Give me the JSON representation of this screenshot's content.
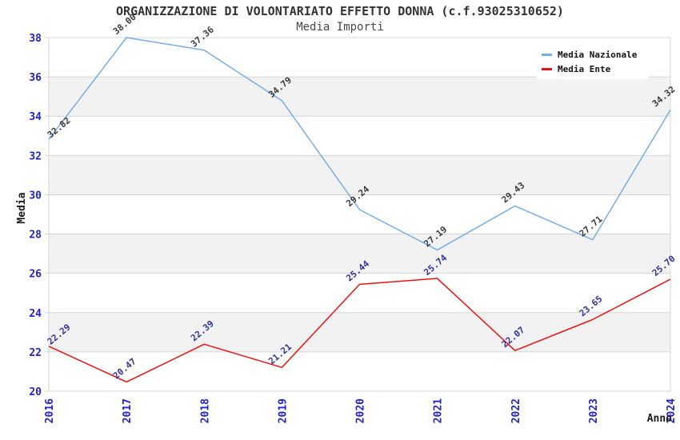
{
  "header": {
    "title": "ORGANIZZAZIONE DI VOLONTARIATO EFFETTO DONNA (c.f.93025310652)",
    "subtitle": "Media Importi"
  },
  "axes": {
    "y_label": "Media",
    "x_label": "Anno",
    "y_ticks": [
      "38",
      "36",
      "34",
      "32",
      "30",
      "28",
      "26",
      "24",
      "22",
      "20"
    ],
    "x_ticks": [
      "2016",
      "2017",
      "2018",
      "2019",
      "2020",
      "2021",
      "2022",
      "2023",
      "2024"
    ]
  },
  "legend": {
    "items": [
      {
        "label": "Media Nazionale",
        "color": "#74AEE6"
      },
      {
        "label": "Media Ente",
        "color": "#EE1111"
      }
    ]
  },
  "chart_data": {
    "type": "line",
    "title": "ORGANIZZAZIONE DI VOLONTARIATO EFFETTO DONNA (c.f.93025310652)",
    "subtitle": "Media Importi",
    "xlabel": "Anno",
    "ylabel": "Media",
    "x": [
      2016,
      2017,
      2018,
      2019,
      2020,
      2021,
      2022,
      2023,
      2024
    ],
    "series": [
      {
        "name": "Media Nazionale",
        "color": "#74AEE6",
        "label_color": "#3C3C3C",
        "values": [
          32.82,
          38.0,
          37.36,
          34.79,
          29.24,
          27.19,
          29.43,
          27.71,
          34.32
        ],
        "labels": [
          "32.82",
          "38.00",
          "37.36",
          "34.79",
          "29.24",
          "27.19",
          "29.43",
          "27.71",
          "34.32"
        ]
      },
      {
        "name": "Media Ente",
        "color": "#EE1111",
        "label_color": "#333399",
        "values": [
          22.29,
          20.47,
          22.39,
          21.21,
          25.44,
          25.74,
          22.07,
          23.65,
          25.7
        ],
        "labels": [
          "22.29",
          "20.47",
          "22.39",
          "21.21",
          "25.44",
          "25.74",
          "22.07",
          "23.65",
          "25.70"
        ]
      }
    ],
    "ylim": [
      20,
      38
    ],
    "y_tick_step": 2,
    "grid": true,
    "band_colors": [
      "#FFFFFF",
      "#F2F2F2"
    ],
    "legend_position": "top-right"
  },
  "colors": {
    "tick_label": "#2222CC",
    "axis_title": "#1A1A1A",
    "grid": "#D6D6D6",
    "title": "#333333",
    "subtitle": "#474747"
  }
}
